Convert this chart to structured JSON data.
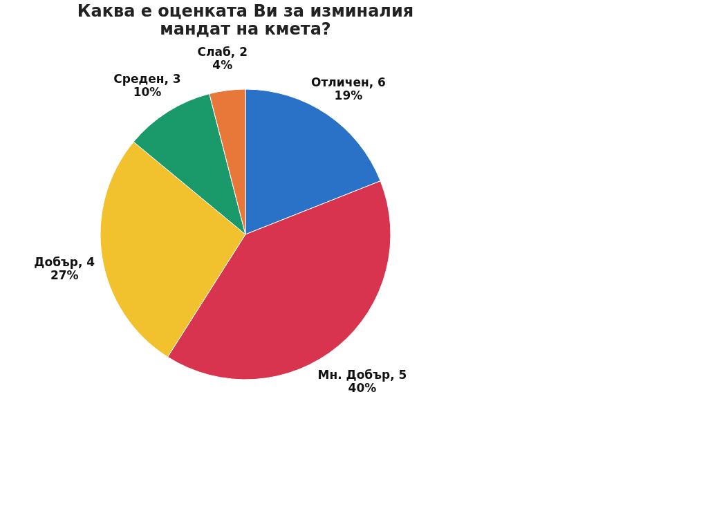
{
  "chart_data": {
    "type": "pie",
    "title": "Каква е оценката Ви за изминалия мандат на кмета?",
    "categories": [
      "Отличен, 6",
      "Мн. Добър, 5",
      "Добър, 4",
      "Среден, 3",
      "Слаб, 2"
    ],
    "values": [
      19,
      40,
      27,
      10,
      4
    ],
    "value_labels": [
      "19%",
      "40%",
      "27%",
      "10%",
      "4%"
    ],
    "colors": [
      "#2a72c8",
      "#d8344f",
      "#f2c12e",
      "#1a9a6a",
      "#e8773a"
    ]
  }
}
